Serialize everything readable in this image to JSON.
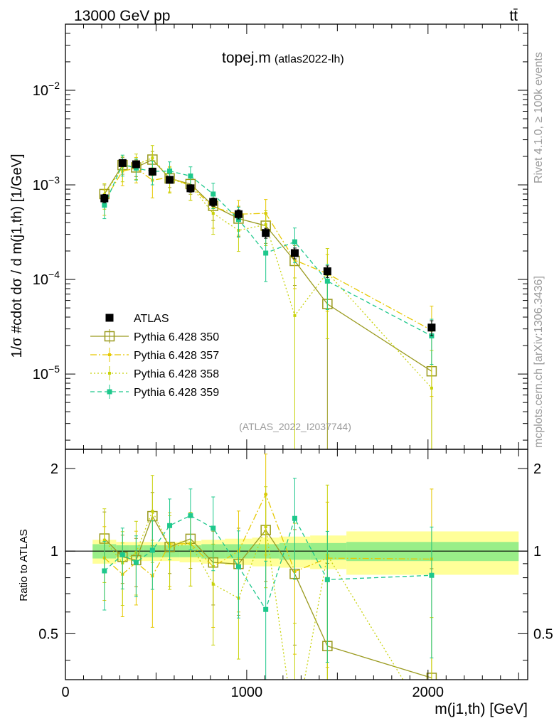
{
  "header": {
    "left": "13000 GeV pp",
    "right": "tt̄"
  },
  "side_labels": {
    "rivet": "Rivet 4.1.0, ≥ 100k events",
    "mcplots": "mcplots.cern.ch [arXiv:1306.3436]"
  },
  "chart_data": {
    "type": "scatter",
    "title": "topej.m",
    "title_suffix": "(atlas2022-lh)",
    "watermark": "(ATLAS_2022_I2037744)",
    "xlabel": "m(j1,th) [GeV]",
    "ylabel": "1/σ #cdot dσ / d m(j1,th) [1/GeV]",
    "ratio_ylabel": "Ratio to ATLAS",
    "xlim": [
      0,
      2550
    ],
    "ylim": [
      1.6e-06,
      0.05
    ],
    "ratio_ylim": [
      0.34,
      2.35
    ],
    "x_ticks": [
      0,
      1000,
      2000
    ],
    "y_ticks": [
      {
        "value": 0.01,
        "mant": "10",
        "exp": "−2"
      },
      {
        "value": 0.001,
        "mant": "10",
        "exp": "−3"
      },
      {
        "value": 0.0001,
        "mant": "10",
        "exp": "−4"
      },
      {
        "value": 1e-05,
        "mant": "10",
        "exp": "−5"
      }
    ],
    "ratio_ticks": [
      0.5,
      1,
      2
    ],
    "x": [
      215,
      315,
      390,
      480,
      575,
      690,
      815,
      955,
      1105,
      1265,
      1445,
      2020
    ],
    "bin_edges": [
      150,
      280,
      350,
      430,
      530,
      630,
      750,
      880,
      1030,
      1180,
      1350,
      1550,
      2500
    ],
    "data": {
      "name": "ATLAS",
      "values": [
        0.00072,
        0.0017,
        0.00165,
        0.00138,
        0.00113,
        0.00092,
        0.00066,
        0.00049,
        0.00031,
        0.00019,
        0.000122,
        3.1e-05
      ],
      "errors": [
        0.1,
        0.08,
        0.08,
        0.08,
        0.08,
        0.09,
        0.1,
        0.11,
        0.12,
        0.13,
        0.14,
        0.18
      ]
    },
    "uncertainty_bands": {
      "inner": [
        0.06,
        0.05,
        0.05,
        0.05,
        0.05,
        0.05,
        0.06,
        0.06,
        0.06,
        0.07,
        0.07,
        0.08
      ],
      "outer": [
        0.1,
        0.08,
        0.08,
        0.08,
        0.08,
        0.09,
        0.1,
        0.11,
        0.12,
        0.13,
        0.14,
        0.18
      ]
    },
    "series": [
      {
        "name": "Pythia 6.428 350",
        "color": "#9a9a1e",
        "dash": "",
        "marker": "open-square",
        "values": [
          0.0008,
          0.00162,
          0.00153,
          0.00185,
          0.00117,
          0.00102,
          0.0006,
          0.00044,
          0.00037,
          0.000157,
          5.5e-05,
          1.07e-05
        ],
        "errors": [
          0.25,
          0.2,
          0.2,
          0.22,
          0.2,
          0.22,
          0.3,
          0.35,
          0.35,
          0.45,
          1.0,
          1.5
        ]
      },
      {
        "name": "Pythia 6.428 357",
        "color": "#e6c800",
        "dash": "9,3,2,3",
        "marker": "small-square",
        "values": [
          0.00068,
          0.0014,
          0.0015,
          0.00112,
          0.0012,
          0.00098,
          0.00058,
          0.00049,
          0.0005,
          0.00016,
          0.000115,
          2.9e-05
        ],
        "errors": [
          0.3,
          0.3,
          0.3,
          0.35,
          0.3,
          0.3,
          0.4,
          0.4,
          0.4,
          0.5,
          0.6,
          0.8
        ]
      },
      {
        "name": "Pythia 6.428 358",
        "color": "#c8d20a",
        "dash": "2,3",
        "marker": "small-square",
        "values": [
          0.00079,
          0.00154,
          0.00163,
          0.00193,
          0.00117,
          0.00098,
          0.0005,
          0.00033,
          0.00038,
          4.15e-05,
          0.000118,
          7.1e-06
        ],
        "errors": [
          0.3,
          0.3,
          0.3,
          0.35,
          0.3,
          0.3,
          0.4,
          0.4,
          0.4,
          1.5,
          0.8,
          1.5
        ]
      },
      {
        "name": "Pythia 6.428 359",
        "color": "#1ec88c",
        "dash": "6,4",
        "marker": "filled-square",
        "values": [
          0.00061,
          0.00165,
          0.0015,
          0.00139,
          0.0014,
          0.00124,
          0.0008,
          0.00043,
          0.00019,
          0.00025,
          9.6e-05,
          2.53e-05
        ],
        "errors": [
          0.28,
          0.25,
          0.25,
          0.28,
          0.25,
          0.25,
          0.3,
          0.35,
          0.5,
          0.4,
          0.5,
          0.5
        ]
      }
    ]
  }
}
